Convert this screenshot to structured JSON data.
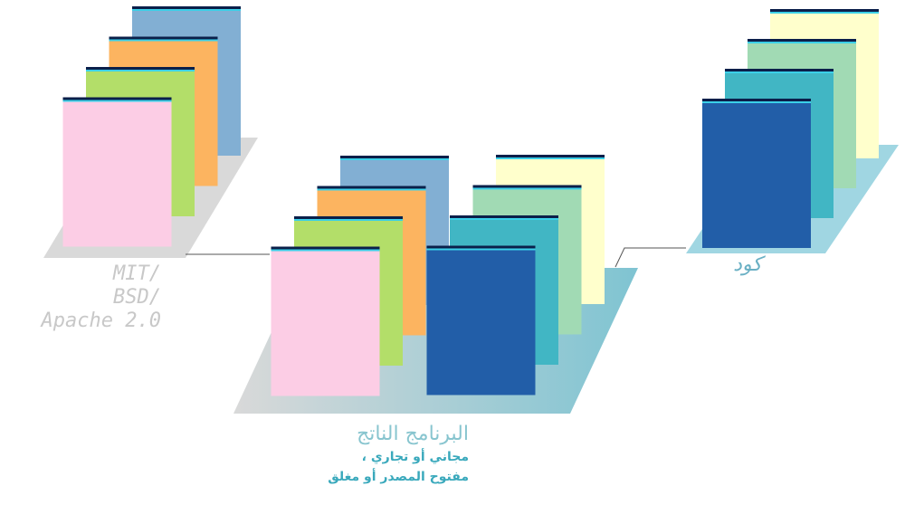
{
  "left_group": {
    "license_lines": [
      "MIT/",
      "BSD/",
      "Apache 2.0"
    ],
    "pages": [
      {
        "color": "#82afd3"
      },
      {
        "color": "#fcb460"
      },
      {
        "color": "#b3de69"
      },
      {
        "color": "#fccde5"
      }
    ],
    "base_color": "#d9d9d9"
  },
  "right_group": {
    "label": "كود",
    "pages": [
      {
        "color": "#ffffcc"
      },
      {
        "color": "#a1dab4"
      },
      {
        "color": "#41b6c4"
      },
      {
        "color": "#225ea8"
      }
    ],
    "base_color": "#a0d6e2"
  },
  "center_group": {
    "title": "البرنامج الناتج",
    "line1": "مجاني أو تجاري ،",
    "line2": "مفتوح  المصدر أو مغلق",
    "pages_left": [
      {
        "color": "#82afd3"
      },
      {
        "color": "#fcb460"
      },
      {
        "color": "#b3de69"
      },
      {
        "color": "#fccde5"
      }
    ],
    "pages_right": [
      {
        "color": "#ffffcc"
      },
      {
        "color": "#a1dab4"
      },
      {
        "color": "#41b6c4"
      },
      {
        "color": "#225ea8"
      }
    ],
    "base_gradient": [
      "#d9d9d9",
      "#7fc4d2"
    ]
  },
  "page_top_colors": [
    "#0b1f4a",
    "#3bd0e8"
  ],
  "connector_color": "#555555"
}
